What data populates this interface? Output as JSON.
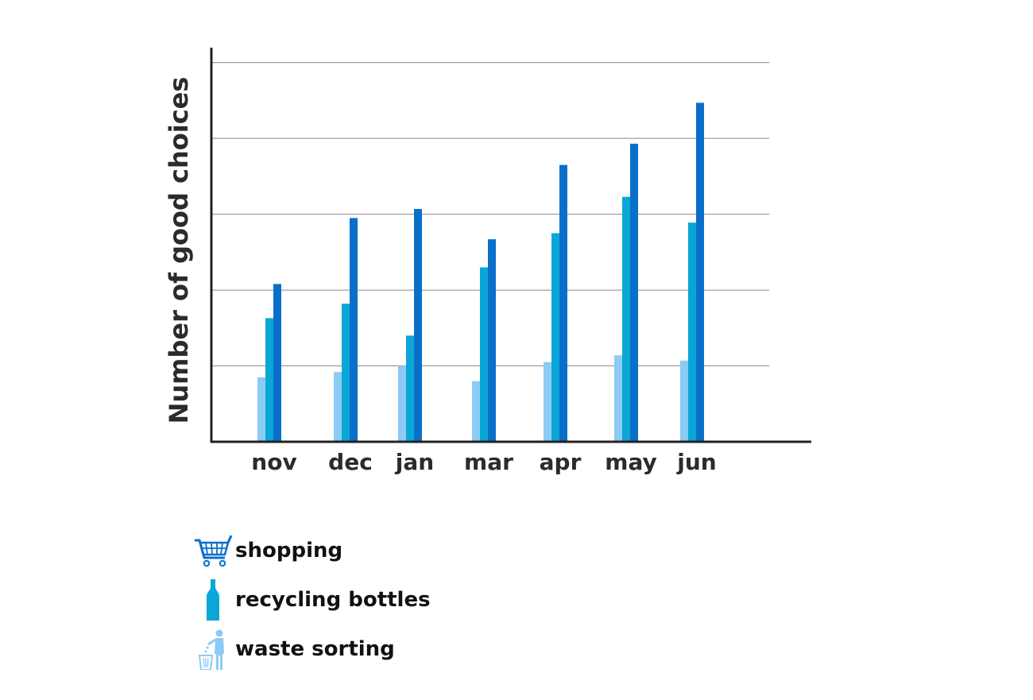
{
  "chart_data": {
    "type": "bar",
    "title": "",
    "xlabel": "",
    "ylabel": "Number of good choices",
    "categories": [
      "nov",
      "dec",
      "jan",
      "mar",
      "apr",
      "may",
      "jun"
    ],
    "ylim": [
      0,
      5.5
    ],
    "grid": true,
    "series": [
      {
        "name": "waste sorting",
        "color": "#8ccbf3",
        "icon": "waste-bin-person-icon",
        "values": [
          0.85,
          0.92,
          1.0,
          0.8,
          1.05,
          1.14,
          1.07
        ]
      },
      {
        "name": "recycling bottles",
        "color": "#0aa6d6",
        "icon": "bottle-icon",
        "values": [
          1.63,
          1.82,
          1.4,
          2.3,
          2.75,
          3.23,
          2.89
        ]
      },
      {
        "name": "shopping",
        "color": "#0a6fc9",
        "icon": "shopping-cart-icon",
        "values": [
          2.08,
          2.95,
          3.07,
          2.67,
          3.65,
          3.93,
          4.47
        ]
      }
    ],
    "legend_order": [
      "shopping",
      "recycling bottles",
      "waste sorting"
    ],
    "legend_position": "bottom-left"
  }
}
